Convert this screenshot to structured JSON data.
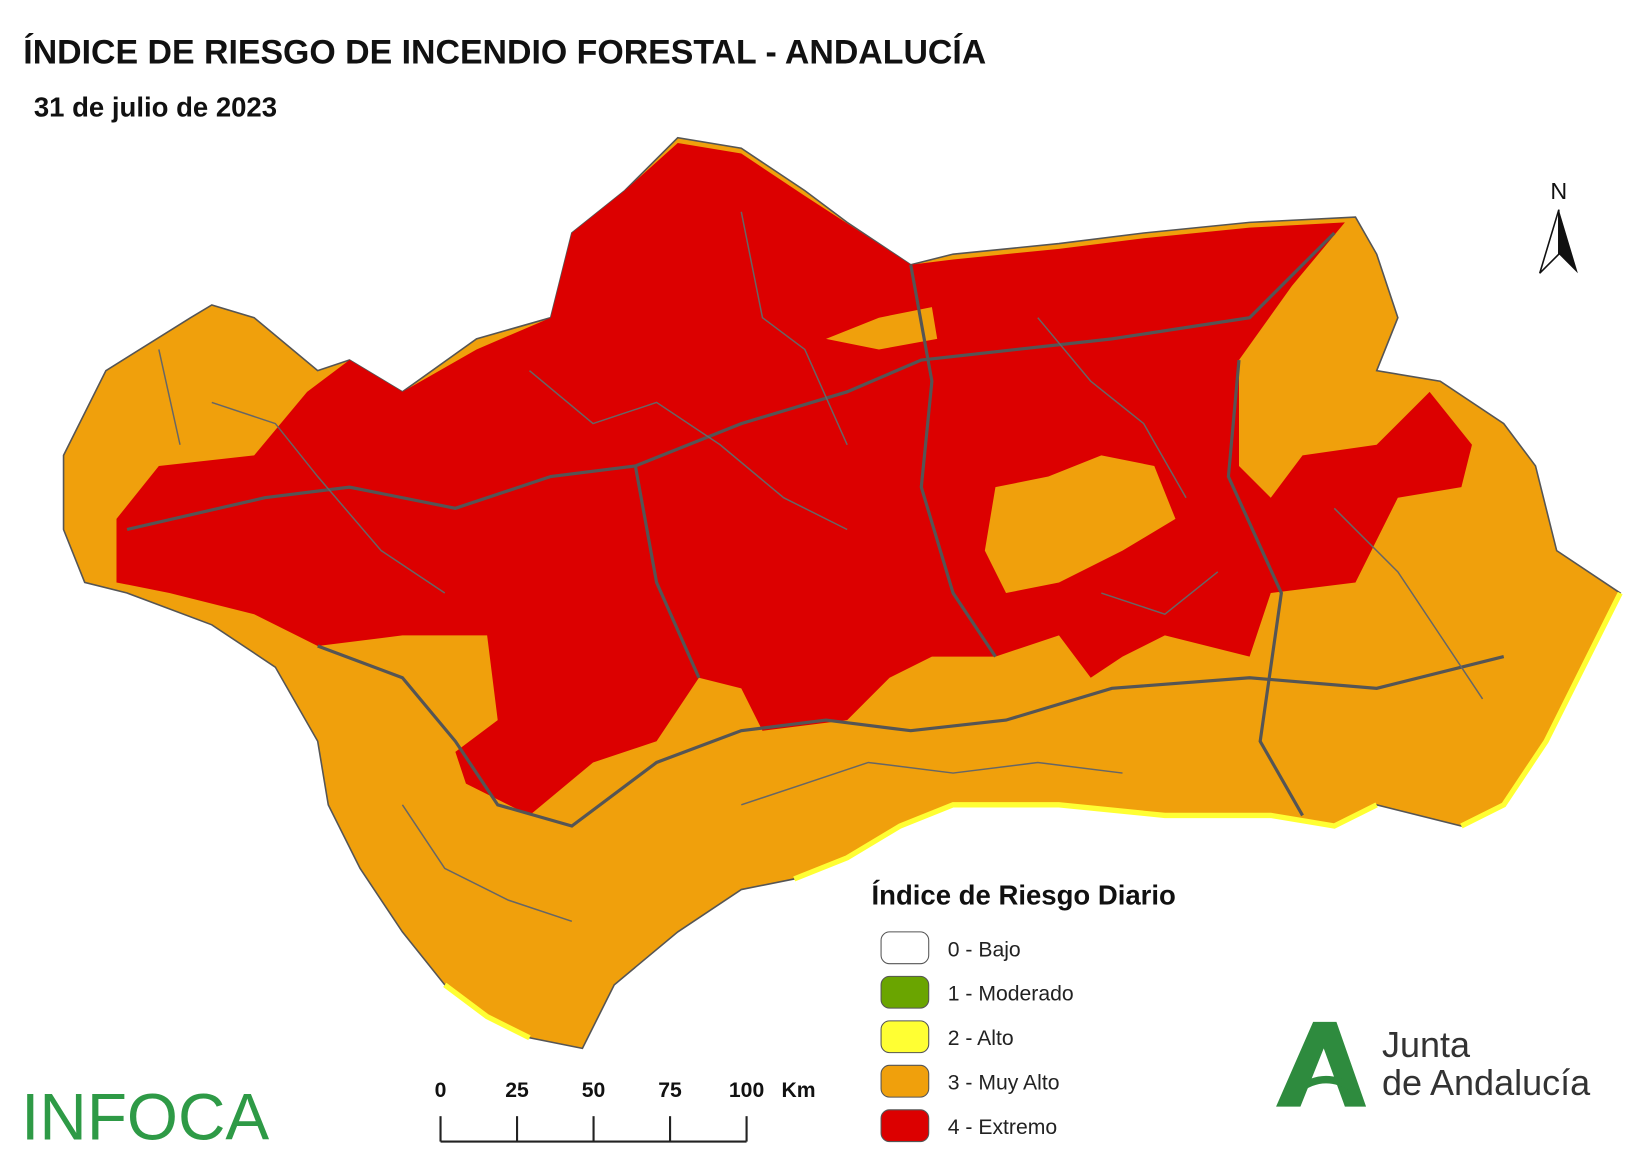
{
  "header": {
    "title": "ÍNDICE DE RIESGO DE INCENDIO FORESTAL - ANDALUCÍA",
    "subtitle": "31 de julio de 2023"
  },
  "legend": {
    "title": "Índice de Riesgo Diario",
    "items": [
      {
        "label": "0 - Bajo",
        "color": "#ffffff"
      },
      {
        "label": "1 - Moderado",
        "color": "#6aa500"
      },
      {
        "label": "2 - Alto",
        "color": "#ffff33"
      },
      {
        "label": "3 - Muy Alto",
        "color": "#f0a00c"
      },
      {
        "label": "4 - Extremo",
        "color": "#dc0000"
      }
    ]
  },
  "scale_bar": {
    "ticks": [
      0,
      25,
      50,
      75,
      100
    ],
    "unit": "Km"
  },
  "north_arrow": "N",
  "logos": {
    "infoca": "INFOCA",
    "junta": [
      "Junta",
      "de Andalucía"
    ]
  }
}
